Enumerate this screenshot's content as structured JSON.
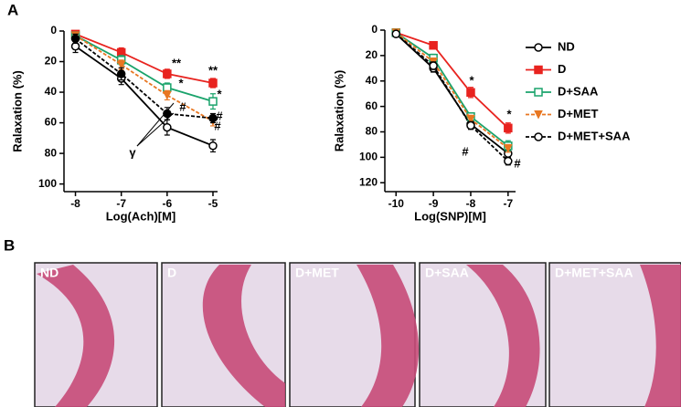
{
  "panel_labels": [
    "A",
    "B"
  ],
  "images": [
    {
      "label": "ND"
    },
    {
      "label": "D"
    },
    {
      "label": "D+MET"
    },
    {
      "label": "D+SAA"
    },
    {
      "label": "D+MET+SAA"
    }
  ],
  "chart_data": [
    {
      "type": "line",
      "x_label": "Log(Ach)[M]",
      "y_label": "Ralaxation (%)",
      "x": [
        -8,
        -7,
        -6,
        -5
      ],
      "xlim": [
        -8.25,
        -4.9
      ],
      "xticks": [
        -8,
        -7,
        -6,
        -5
      ],
      "ylim": [
        0,
        105
      ],
      "yticks": [
        0,
        20,
        40,
        60,
        80,
        100
      ],
      "y_reversed": true,
      "legend": false,
      "annotations": [
        "**",
        "**",
        "*",
        "*",
        "#",
        "#",
        "#",
        "γ"
      ],
      "series": [
        {
          "color": "#000000",
          "marker": "circle-open",
          "dashed": false,
          "values": [
            10,
            31,
            63,
            75
          ],
          "errors": [
            4,
            4,
            5,
            4
          ]
        },
        {
          "color": "#e8231f",
          "marker": "square-filled",
          "dashed": false,
          "values": [
            2,
            14,
            28,
            34
          ],
          "errors": [
            2,
            3,
            3,
            3
          ]
        },
        {
          "color": "#1aa36b",
          "marker": "square-open",
          "dashed": false,
          "values": [
            3,
            19,
            37,
            46
          ],
          "errors": [
            2,
            3,
            3,
            5
          ]
        },
        {
          "color": "#e87722",
          "marker": "triangle-down",
          "dashed": true,
          "values": [
            3,
            22,
            42,
            59
          ],
          "errors": [
            2,
            3,
            3,
            3
          ]
        },
        {
          "color": "#000000",
          "marker": "circle-filled",
          "dashed": true,
          "values": [
            5,
            28,
            54,
            57
          ],
          "errors": [
            3,
            4,
            4,
            3
          ]
        }
      ]
    },
    {
      "type": "line",
      "x_label": "Log(SNP)[M]",
      "y_label": "Ralaxation (%)",
      "x": [
        -10,
        -9,
        -8,
        -7
      ],
      "xlim": [
        -10.3,
        -6.8
      ],
      "xticks": [
        -10,
        -9,
        -8,
        -7
      ],
      "ylim": [
        0,
        127
      ],
      "yticks": [
        0,
        20,
        40,
        60,
        80,
        100,
        120
      ],
      "y_reversed": true,
      "legend": "right",
      "annotations": [
        "*",
        "*",
        "#",
        "#"
      ],
      "series": [
        {
          "name": "ND",
          "color": "#000000",
          "marker": "circle-open",
          "dashed": false,
          "values": [
            3,
            30,
            74,
            97
          ],
          "errors": [
            1,
            3,
            4,
            3
          ]
        },
        {
          "name": "D",
          "color": "#e8231f",
          "marker": "square-filled",
          "dashed": false,
          "values": [
            2,
            12,
            49,
            77
          ],
          "errors": [
            1,
            2,
            4,
            4
          ]
        },
        {
          "name": "D+SAA",
          "color": "#1aa36b",
          "marker": "square-open",
          "dashed": false,
          "values": [
            2,
            22,
            68,
            91
          ],
          "errors": [
            1,
            3,
            3,
            4
          ]
        },
        {
          "name": "D+MET",
          "color": "#e87722",
          "marker": "triangle-down",
          "dashed": true,
          "values": [
            2,
            25,
            70,
            93
          ],
          "errors": [
            1,
            3,
            3,
            3
          ]
        },
        {
          "name": "D+MET+SAA",
          "color": "#000000",
          "marker": "circle-open",
          "dashed": true,
          "values": [
            3,
            28,
            75,
            103
          ],
          "errors": [
            1,
            3,
            3,
            3
          ]
        }
      ]
    }
  ]
}
